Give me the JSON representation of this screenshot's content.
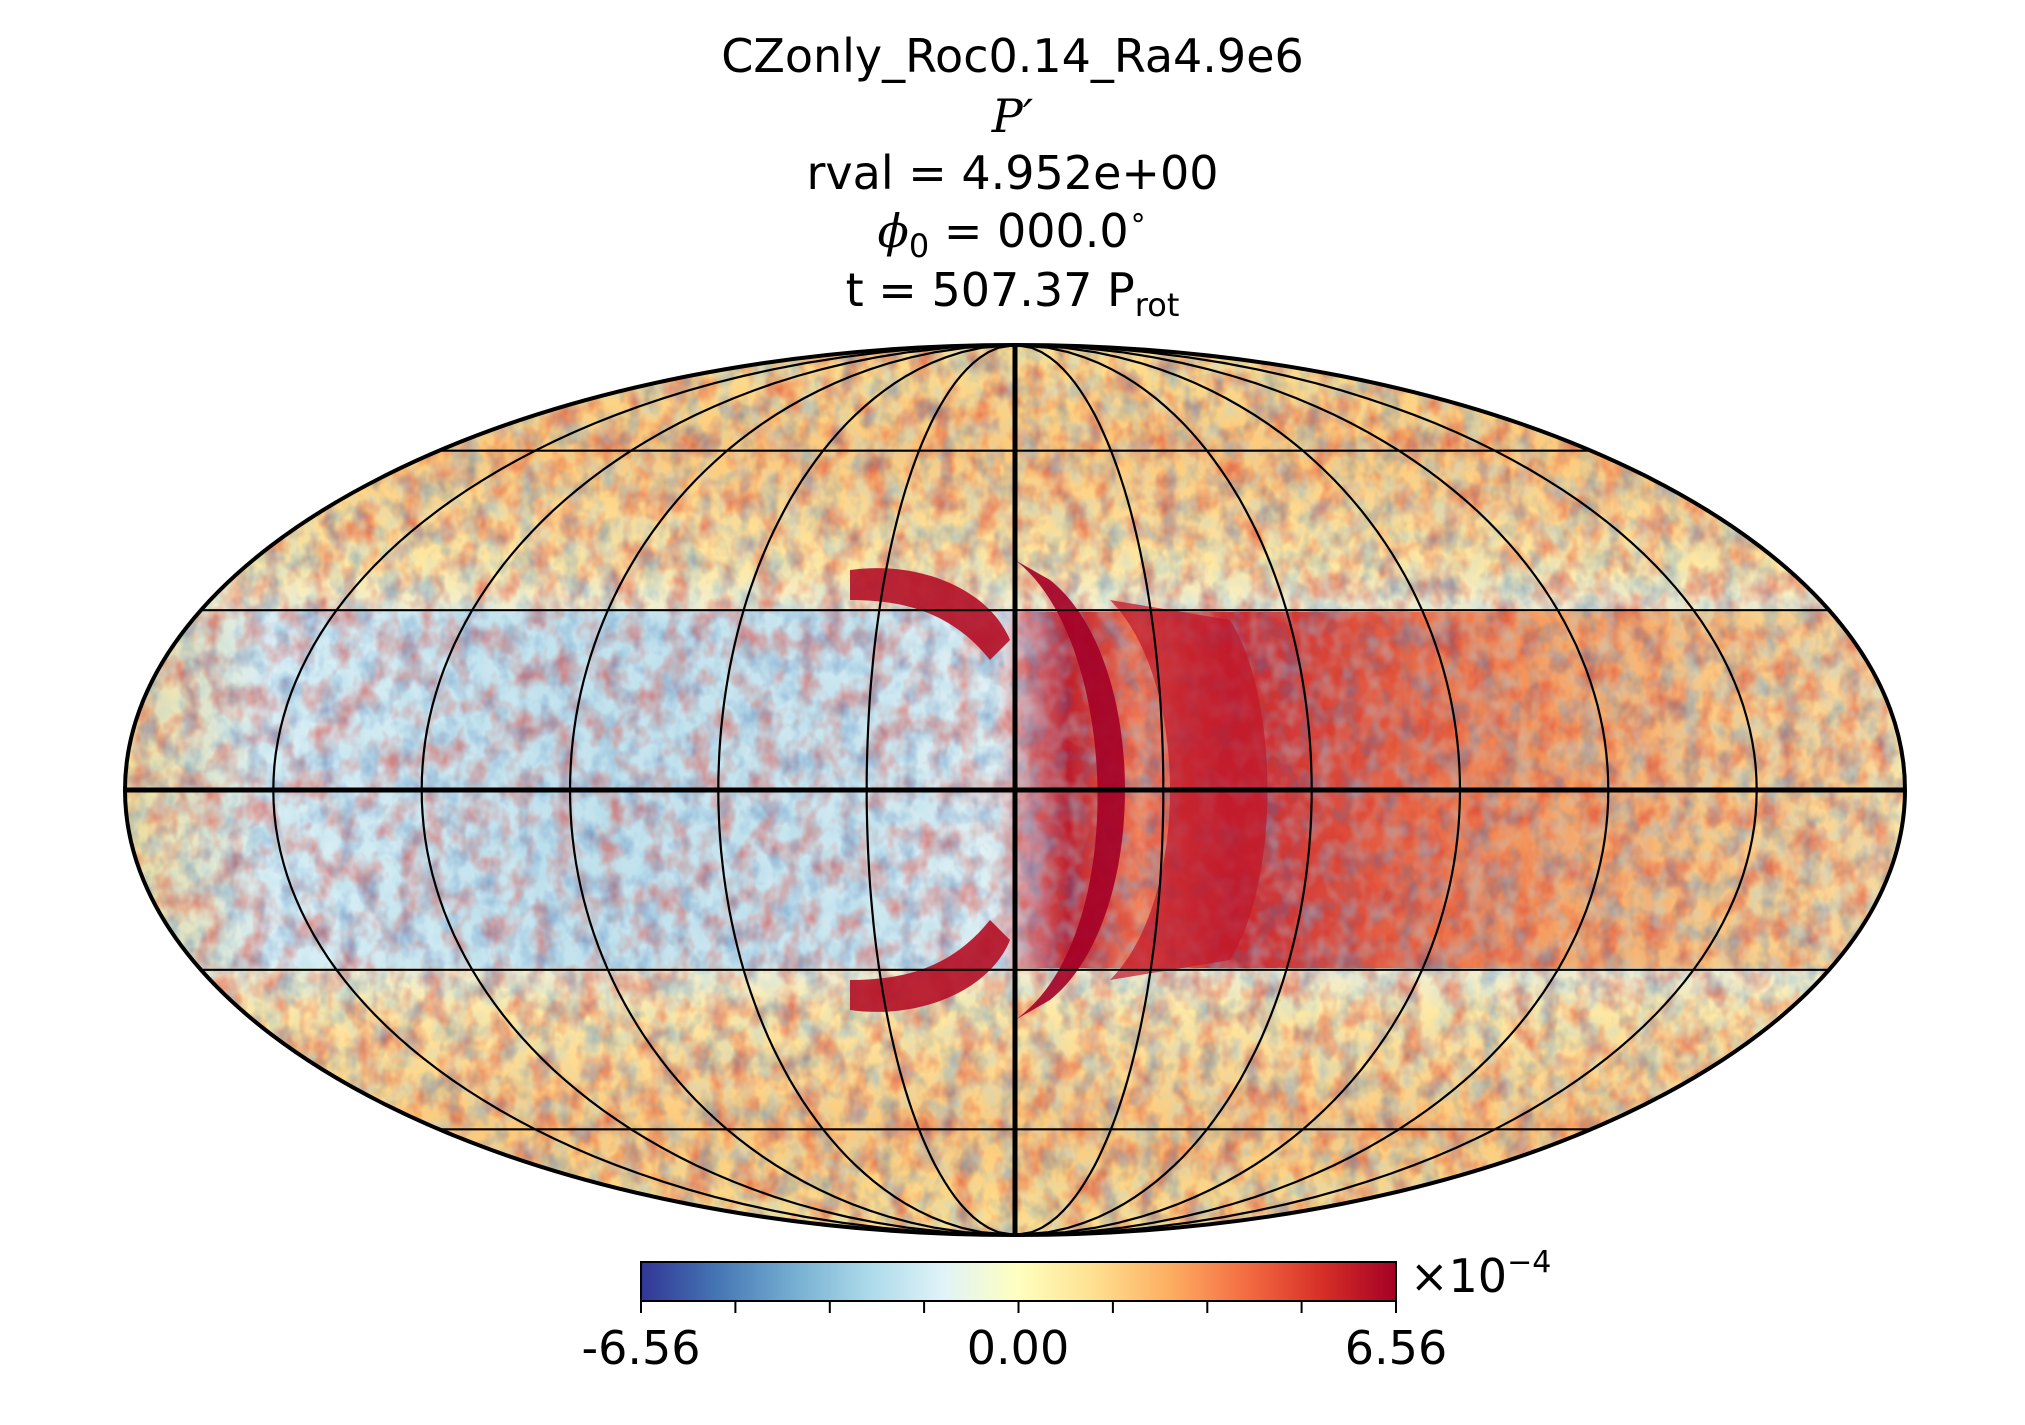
{
  "title": {
    "run_name": "CZonly_Roc0.14_Ra4.9e6",
    "quantity_symbol": "P",
    "quantity_prime": "′",
    "rval_text": "rval = 4.952e+00",
    "phi_symbol": "ϕ",
    "phi_subscript": "0",
    "phi_value_text": " = 000.0",
    "phi_degree": "∘",
    "time_text": "t = 507.37 P",
    "time_subscript": "rot"
  },
  "colorbar": {
    "tick_labels": [
      "-6.56",
      "0.00",
      "6.56"
    ],
    "multiplier_base": "×10",
    "multiplier_exponent": "−4",
    "colormap": [
      "#313695",
      "#4575b4",
      "#74add1",
      "#abd9e9",
      "#e0f3f8",
      "#ffffbf",
      "#fee090",
      "#fdae61",
      "#f46d43",
      "#d73027",
      "#a50026"
    ]
  },
  "chart_data": {
    "type": "heatmap",
    "projection": "mollweide",
    "title": "CZonly_Roc0.14_Ra4.9e6 / P′ / rval = 4.952e+00 / ϕ0 = 000.0∘ / t = 507.37 Prot",
    "colorbar_range": [
      -6.56,
      6.56
    ],
    "colorbar_units_multiplier": "×10^-4",
    "colorbar_ticks": [
      -6.56,
      0.0,
      6.56
    ],
    "grid": true,
    "meridians_deg": [
      -180,
      -150,
      -120,
      -90,
      -60,
      -30,
      0,
      30,
      60,
      90,
      120,
      150,
      180
    ],
    "parallels_deg": [
      -60,
      -30,
      0,
      30,
      60
    ],
    "field_description_values": [
      {
        "region": "equatorial band west of central meridian (lon -150 to 0)",
        "approx_value": -1.5
      },
      {
        "region": "equatorial band east of central meridian (lon 0 to 90)",
        "approx_value": 5.5
      },
      {
        "region": "equatorial band far east (lon 90 to 180)",
        "approx_value": 3.0
      },
      {
        "region": "mid and high latitudes",
        "approx_value": 0.5
      }
    ]
  }
}
